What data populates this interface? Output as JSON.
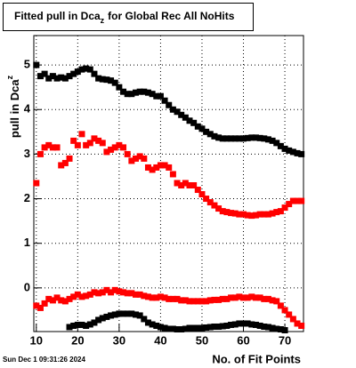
{
  "chart_data": {
    "type": "scatter",
    "title": [
      "Fitted pull in Dca",
      "z",
      "for Global Rec All NoHits"
    ],
    "y_label": [
      "pull in Dca",
      "z"
    ],
    "x_label": "No. of Fit Points",
    "timestamp": "Sun Dec  1 09:31:26 2024",
    "x": [
      10,
      11,
      12,
      13,
      14,
      15,
      16,
      17,
      18,
      19,
      20,
      21,
      22,
      23,
      24,
      25,
      26,
      27,
      28,
      29,
      30,
      31,
      32,
      33,
      34,
      35,
      36,
      37,
      38,
      39,
      40,
      41,
      42,
      43,
      44,
      45,
      46,
      47,
      48,
      49,
      50,
      51,
      52,
      53,
      54,
      55,
      56,
      57,
      58,
      59,
      60,
      61,
      62,
      63,
      64,
      65,
      66,
      67,
      68,
      69,
      70,
      71,
      72,
      73,
      74
    ],
    "series": [
      {
        "color": "#000000",
        "values": [
          5.0,
          4.75,
          4.8,
          4.7,
          4.75,
          4.7,
          4.72,
          4.7,
          4.75,
          4.8,
          4.85,
          4.9,
          4.92,
          4.9,
          4.8,
          4.7,
          4.68,
          4.67,
          4.65,
          4.6,
          4.5,
          4.4,
          4.35,
          4.35,
          4.38,
          4.4,
          4.4,
          4.38,
          4.35,
          4.3,
          4.3,
          4.2,
          4.1,
          4.0,
          3.95,
          3.88,
          3.82,
          3.75,
          3.7,
          3.62,
          3.57,
          3.5,
          3.45,
          3.4,
          3.37,
          3.35,
          3.35,
          3.35,
          3.35,
          3.35,
          3.35,
          3.36,
          3.37,
          3.37,
          3.36,
          3.35,
          3.33,
          3.3,
          3.25,
          3.18,
          3.12,
          3.08,
          3.05,
          3.02,
          3.0
        ]
      },
      {
        "color": "#ff0000",
        "values": [
          2.35,
          3.0,
          3.15,
          3.2,
          3.15,
          3.15,
          2.75,
          2.8,
          2.9,
          3.3,
          3.2,
          3.45,
          3.2,
          3.25,
          3.35,
          3.3,
          3.25,
          3.05,
          3.1,
          3.15,
          3.2,
          3.15,
          3.0,
          2.85,
          2.9,
          2.95,
          2.9,
          2.7,
          2.65,
          2.7,
          2.75,
          2.75,
          2.7,
          2.55,
          2.35,
          2.3,
          2.35,
          2.3,
          2.3,
          2.2,
          2.1,
          2.0,
          1.92,
          1.85,
          1.78,
          1.72,
          1.7,
          1.68,
          1.67,
          1.65,
          1.65,
          1.63,
          1.62,
          1.63,
          1.65,
          1.65,
          1.65,
          1.67,
          1.7,
          1.72,
          1.8,
          1.88,
          1.95,
          1.95,
          1.95
        ]
      },
      {
        "color": "#ff0000",
        "values": [
          -0.4,
          -0.45,
          -0.35,
          -0.25,
          -0.28,
          -0.22,
          -0.28,
          -0.3,
          -0.25,
          -0.2,
          -0.15,
          -0.2,
          -0.18,
          -0.15,
          -0.1,
          -0.12,
          -0.1,
          -0.05,
          -0.1,
          -0.05,
          -0.08,
          -0.1,
          -0.12,
          -0.12,
          -0.15,
          -0.15,
          -0.18,
          -0.2,
          -0.22,
          -0.22,
          -0.2,
          -0.22,
          -0.25,
          -0.25,
          -0.25,
          -0.28,
          -0.28,
          -0.3,
          -0.3,
          -0.3,
          -0.3,
          -0.3,
          -0.28,
          -0.27,
          -0.27,
          -0.25,
          -0.25,
          -0.22,
          -0.22,
          -0.2,
          -0.22,
          -0.22,
          -0.2,
          -0.22,
          -0.22,
          -0.25,
          -0.25,
          -0.28,
          -0.3,
          -0.4,
          -0.5,
          -0.6,
          -0.7,
          -0.8,
          -0.85
        ]
      },
      {
        "color": "#000000",
        "values": [
          null,
          null,
          null,
          null,
          null,
          null,
          null,
          null,
          -0.88,
          -0.85,
          -0.83,
          -0.83,
          -0.85,
          -0.82,
          -0.78,
          -0.72,
          -0.68,
          -0.65,
          -0.62,
          -0.6,
          -0.58,
          -0.58,
          -0.58,
          -0.58,
          -0.6,
          -0.62,
          -0.7,
          -0.78,
          -0.82,
          -0.85,
          -0.88,
          -0.9,
          -0.92,
          -0.92,
          -0.93,
          -0.93,
          -0.92,
          -0.9,
          -0.9,
          -0.9,
          -0.9,
          -0.89,
          -0.88,
          -0.87,
          -0.87,
          -0.86,
          -0.85,
          -0.83,
          -0.82,
          -0.8,
          -0.8,
          -0.8,
          -0.82,
          -0.83,
          -0.85,
          -0.87,
          -0.88,
          -0.9,
          -0.92,
          -0.93,
          -0.95,
          null,
          null,
          null,
          null
        ]
      }
    ],
    "xlim": [
      9.4,
      74.5
    ],
    "xticks": [
      10,
      20,
      30,
      40,
      50,
      60,
      70
    ],
    "ylim": [
      -0.98,
      5.66
    ],
    "yticks": [
      0,
      1,
      2,
      3,
      4,
      5
    ],
    "grid": true
  }
}
